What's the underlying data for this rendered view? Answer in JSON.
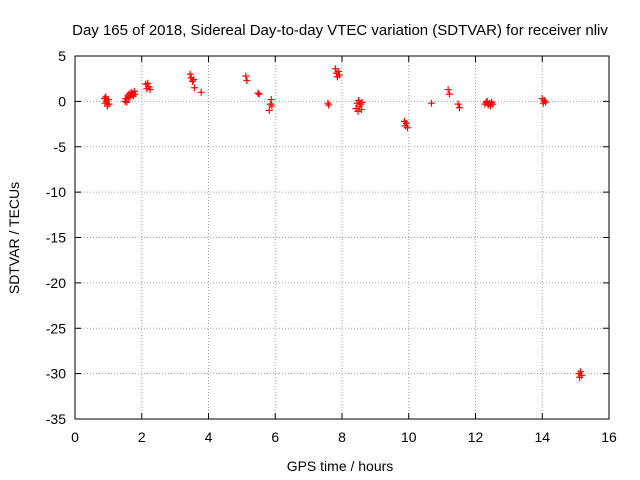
{
  "chart_data": {
    "type": "scatter",
    "title": "Day 165 of 2018, Sidereal Day-to-day VTEC variation (SDTVAR) for receiver nliv",
    "xlabel": "GPS time / hours",
    "ylabel": "SDTVAR / TECUs",
    "xlim": [
      0,
      16
    ],
    "ylim": [
      -35,
      5
    ],
    "xticks": [
      0,
      2,
      4,
      6,
      8,
      10,
      12,
      14,
      16
    ],
    "yticks": [
      5,
      0,
      -5,
      -10,
      -15,
      -20,
      -25,
      -30,
      -35
    ],
    "grid": true,
    "marker": "+",
    "colors": {
      "points": "#ff0000",
      "grid": "#a0a0a0",
      "axis": "#000000"
    },
    "series": [
      {
        "name": "SDTVAR",
        "x": [
          0.88,
          0.9,
          0.92,
          0.95,
          0.97,
          1.0,
          1.02,
          1.5,
          1.52,
          1.55,
          1.58,
          1.6,
          1.62,
          1.65,
          1.68,
          1.7,
          1.72,
          1.75,
          1.78,
          1.8,
          2.12,
          2.15,
          2.18,
          2.22,
          2.25,
          3.45,
          3.48,
          3.52,
          3.55,
          3.58,
          3.78,
          5.12,
          5.15,
          5.48,
          5.52,
          5.82,
          5.85,
          5.88,
          5.9,
          7.58,
          7.6,
          7.8,
          7.83,
          7.86,
          7.89,
          7.92,
          8.42,
          8.45,
          8.48,
          8.5,
          8.52,
          8.55,
          8.58,
          8.6,
          9.87,
          9.9,
          9.93,
          9.96,
          10.68,
          11.18,
          11.22,
          11.48,
          11.52,
          12.28,
          12.32,
          12.35,
          12.38,
          12.42,
          12.45,
          12.48,
          12.52,
          14.0,
          14.03,
          14.06,
          14.1,
          15.1,
          15.12,
          15.15,
          15.18
        ],
        "y": [
          0.3,
          -0.2,
          0.5,
          0.0,
          -0.5,
          0.2,
          -0.3,
          0.0,
          0.3,
          -0.1,
          0.6,
          0.4,
          0.8,
          0.5,
          1.0,
          0.7,
          0.9,
          0.6,
          1.1,
          0.8,
          1.9,
          1.4,
          2.0,
          1.6,
          1.3,
          3.0,
          2.6,
          2.2,
          2.4,
          1.5,
          1.0,
          2.8,
          2.3,
          0.9,
          0.8,
          -1.0,
          -0.3,
          0.2,
          -0.5,
          -0.2,
          -0.4,
          3.6,
          3.1,
          2.7,
          3.3,
          2.9,
          -0.8,
          -0.2,
          -1.1,
          0.1,
          -0.6,
          -0.3,
          -0.9,
          -0.1,
          -2.2,
          -2.7,
          -2.4,
          -2.9,
          -0.2,
          1.3,
          0.8,
          -0.3,
          -0.7,
          -0.3,
          -0.1,
          0.0,
          -0.4,
          -0.2,
          -0.5,
          -0.1,
          -0.3,
          0.3,
          -0.2,
          0.1,
          -0.1,
          -30.0,
          -30.4,
          -29.8,
          -30.2
        ]
      }
    ]
  }
}
